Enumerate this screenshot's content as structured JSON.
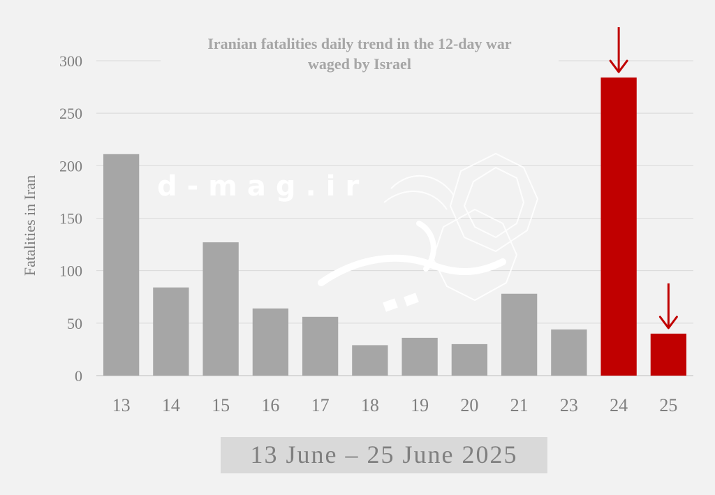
{
  "chart_data": {
    "type": "bar",
    "title": "Iranian fatalities daily trend in the 12-day war waged by Israel",
    "title_lines": [
      "Iranian fatalities daily trend in the 12-day war",
      "waged by Israel"
    ],
    "ylabel": "Fatalities in Iran",
    "xlabel": "13 June – 25 June 2025",
    "categories": [
      "13",
      "14",
      "15",
      "16",
      "17",
      "18",
      "19",
      "20",
      "21",
      "23",
      "24",
      "25"
    ],
    "values": [
      211,
      84,
      127,
      64,
      56,
      29,
      36,
      30,
      78,
      44,
      284,
      40
    ],
    "highlighted": [
      "24",
      "25"
    ],
    "ylim": [
      0,
      300
    ],
    "yticks": [
      0,
      50,
      100,
      150,
      200,
      250,
      300
    ],
    "grid": true,
    "legend": "none",
    "colors": {
      "bar": "#a6a6a6",
      "highlight": "#c00000",
      "arrow": "#c00000",
      "grid": "#d9d9d9",
      "text": "#7f7f7f"
    }
  },
  "watermark": "d-mag.ir"
}
